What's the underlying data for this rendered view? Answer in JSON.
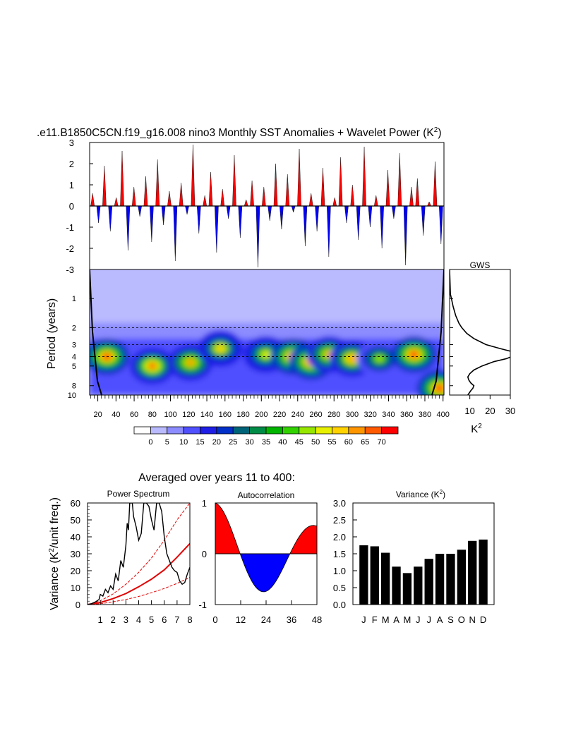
{
  "title": {
    "main": ".e11.B1850C5CN.f19_g16.008 nino3 Monthly SST Anomalies + Wavelet Power (K",
    "sup": "2",
    "close": ")"
  },
  "subtitle": "Averaged over years 11 to 400:",
  "colors": {
    "positive": "#ff0000",
    "negative": "#0000ff",
    "wavelet_palette": [
      "#ffffff",
      "#babaff",
      "#8c8cff",
      "#5050ff",
      "#1e1ee6",
      "#0030c8",
      "#006478",
      "#008c46",
      "#00b400",
      "#32d200",
      "#96e600",
      "#e6f000",
      "#ffd200",
      "#ff9600",
      "#ff5a00",
      "#ff0000"
    ]
  },
  "chart_data": [
    {
      "id": "timeseries",
      "type": "bar",
      "description_source": "monthly SST anomaly time series",
      "x_range": [
        11,
        400
      ],
      "ylim": [
        -3,
        3
      ],
      "yticks": [
        "3",
        "2",
        "1",
        "0",
        "-1",
        "-2",
        "-3"
      ],
      "ytick_values": [
        3,
        2,
        1,
        0,
        -1,
        -2,
        -3
      ],
      "sampled_values": [
        0.6,
        -0.8,
        1.9,
        -1.2,
        0.4,
        2.6,
        -2.1,
        0.9,
        -0.5,
        1.4,
        -1.7,
        2.2,
        -0.9,
        0.7,
        -2.6,
        1.1,
        -0.4,
        2.9,
        -1.3,
        0.5,
        1.6,
        -2.2,
        0.8,
        -0.6,
        2.4,
        -1.5,
        0.3,
        1.2,
        -2.9,
        0.9,
        -0.7,
        2.0,
        -1.1,
        1.5,
        -0.3,
        2.7,
        -1.9,
        0.6,
        -1.2,
        1.8,
        -2.4,
        0.4,
        2.3,
        -0.8,
        1.0,
        -1.6,
        2.8,
        -1.0,
        0.5,
        -2.0,
        1.7,
        -0.6,
        2.5,
        -2.8,
        0.9,
        1.3,
        -1.4,
        0.2,
        2.1,
        -1.8
      ]
    },
    {
      "id": "wavelet_power",
      "type": "heatmap",
      "ylabel": "Period (years)",
      "xticks": [
        "20",
        "40",
        "60",
        "80",
        "100",
        "120",
        "140",
        "160",
        "180",
        "200",
        "220",
        "240",
        "260",
        "280",
        "300",
        "320",
        "340",
        "360",
        "380",
        "400"
      ],
      "xtick_values": [
        20,
        40,
        60,
        80,
        100,
        120,
        140,
        160,
        180,
        200,
        220,
        240,
        260,
        280,
        300,
        320,
        340,
        360,
        380,
        400
      ],
      "yticks": [
        "1",
        "2",
        "3",
        "4",
        "5",
        "8",
        "10"
      ],
      "ytick_values": [
        1,
        2,
        3,
        4,
        5,
        8,
        10
      ],
      "dashed_periods": [
        2,
        3,
        4
      ],
      "x_range": [
        11,
        401
      ],
      "y_range_years": [
        0.5,
        10
      ],
      "colorbar_labels": [
        "0",
        "5",
        "10",
        "15",
        "20",
        "25",
        "30",
        "35",
        "40",
        "45",
        "50",
        "55",
        "60",
        "65",
        "70"
      ],
      "colorbar_levels": [
        0,
        5,
        10,
        15,
        20,
        25,
        30,
        35,
        40,
        45,
        50,
        55,
        60,
        65,
        70
      ],
      "hotspots": [
        {
          "x": 30,
          "period": 4.0,
          "power": 70
        },
        {
          "x": 80,
          "period": 5.0,
          "power": 65
        },
        {
          "x": 122,
          "period": 4.6,
          "power": 60
        },
        {
          "x": 155,
          "period": 3.3,
          "power": 55
        },
        {
          "x": 205,
          "period": 3.8,
          "power": 50
        },
        {
          "x": 235,
          "period": 4.0,
          "power": 72
        },
        {
          "x": 255,
          "period": 4.5,
          "power": 70
        },
        {
          "x": 275,
          "period": 3.8,
          "power": 60
        },
        {
          "x": 300,
          "period": 4.2,
          "power": 62
        },
        {
          "x": 330,
          "period": 4.2,
          "power": 45
        },
        {
          "x": 368,
          "period": 3.8,
          "power": 70
        },
        {
          "x": 396,
          "period": 8.5,
          "power": 70
        }
      ]
    },
    {
      "id": "gws",
      "type": "line",
      "title": "GWS",
      "xlabel": "K",
      "xlabel_sup": "2",
      "xticks": [
        "10",
        "20",
        "30"
      ],
      "xtick_values": [
        10,
        20,
        30
      ],
      "x_range": [
        0,
        30
      ],
      "period": [
        0.5,
        0.9,
        1.0,
        1.2,
        1.5,
        1.8,
        2.0,
        2.3,
        2.6,
        3.0,
        3.3,
        3.6,
        3.9,
        4.2,
        4.5,
        5.0,
        5.5,
        6.0,
        6.5,
        7.0,
        7.5,
        8.0,
        8.5,
        9.0,
        10.0
      ],
      "power": [
        0.0,
        0.4,
        0.9,
        1.7,
        3.0,
        4.6,
        6.0,
        8.5,
        12.0,
        18.0,
        25.0,
        32.0,
        32.0,
        28.0,
        22.0,
        16.0,
        12.0,
        10.0,
        9.0,
        9.5,
        10.5,
        12.0,
        11.5,
        10.5,
        9.0
      ]
    },
    {
      "id": "power_spectrum",
      "type": "line",
      "title": "Power Spectrum",
      "ylabel": "Variance (K",
      "ylabel_sup": "2",
      "ylabel_end": "/unit freq.)",
      "xticks": [
        "1",
        "2",
        "3",
        "4",
        "5",
        "6",
        "7",
        "8"
      ],
      "xtick_values": [
        1,
        2,
        3,
        4,
        5,
        6,
        7,
        8
      ],
      "yticks": [
        "60",
        "50",
        "40",
        "30",
        "20",
        "10",
        "0"
      ],
      "ytick_values": [
        60,
        50,
        40,
        30,
        20,
        10,
        0
      ],
      "xlim": [
        0,
        8
      ],
      "ylim": [
        0,
        60
      ],
      "x": [
        0.0,
        0.3,
        0.6,
        0.9,
        1.0,
        1.2,
        1.4,
        1.6,
        1.8,
        2.0,
        2.2,
        2.4,
        2.6,
        2.8,
        3.0,
        3.1,
        3.2,
        3.3,
        3.5,
        3.6,
        3.8,
        4.0,
        4.2,
        4.4,
        4.6,
        4.8,
        5.0,
        5.2,
        5.4,
        5.6,
        5.8,
        6.0,
        6.2,
        6.4,
        6.6,
        6.8,
        7.0,
        7.2,
        7.4,
        7.6,
        7.8,
        8.0
      ],
      "y": [
        0.0,
        0.5,
        1.5,
        3.0,
        6.0,
        5.0,
        9.0,
        7.0,
        11.0,
        9.0,
        18.0,
        14.0,
        26.0,
        22.0,
        35.0,
        48.0,
        44.0,
        60.0,
        60.0,
        52.0,
        46.0,
        38.0,
        42.0,
        60.0,
        60.0,
        58.0,
        50.0,
        44.0,
        60.0,
        60.0,
        55.0,
        40.0,
        30.0,
        26.0,
        22.0,
        20.0,
        19.0,
        14.0,
        12.0,
        13.0,
        18.0,
        22.0
      ],
      "red_noise": {
        "x": [
          0,
          1,
          2,
          3,
          4,
          5,
          6,
          7,
          8
        ],
        "y": [
          0,
          1.2,
          3.5,
          6.5,
          10.5,
          15,
          20.5,
          28,
          36
        ]
      },
      "red_noise_upper": {
        "x": [
          0,
          1,
          2,
          3,
          4,
          5,
          6,
          7,
          8
        ],
        "y": [
          0,
          2.2,
          6.3,
          12,
          19,
          27.5,
          38,
          50,
          60
        ]
      },
      "red_noise_lower": {
        "x": [
          0,
          1,
          2,
          3,
          4,
          5,
          6,
          7,
          8
        ],
        "y": [
          0,
          0.5,
          1.6,
          3.0,
          4.8,
          7.0,
          9.5,
          12.5,
          16
        ]
      }
    },
    {
      "id": "autocorrelation",
      "type": "area",
      "title": "Autocorrelation",
      "xticks": [
        "0",
        "12",
        "24",
        "36",
        "48"
      ],
      "xtick_values": [
        0,
        12,
        24,
        36,
        48
      ],
      "yticks": [
        "1",
        "0",
        "-1"
      ],
      "ytick_values": [
        1,
        0,
        -1
      ],
      "xlim": [
        0,
        48
      ],
      "ylim": [
        -1,
        1
      ]
    },
    {
      "id": "variance",
      "type": "bar",
      "title": "Variance (K",
      "title_sup": "2",
      "title_end": ")",
      "categories": [
        "J",
        "F",
        "M",
        "A",
        "M",
        "J",
        "J",
        "A",
        "S",
        "O",
        "N",
        "D"
      ],
      "values": [
        1.75,
        1.72,
        1.53,
        1.12,
        0.93,
        1.12,
        1.35,
        1.5,
        1.5,
        1.62,
        1.88,
        1.92
      ],
      "yticks": [
        "3.0",
        "2.5",
        "2.0",
        "1.5",
        "1.0",
        "0.5",
        "0.0"
      ],
      "ytick_values": [
        3.0,
        2.5,
        2.0,
        1.5,
        1.0,
        0.5,
        0.0
      ],
      "ylim": [
        0,
        3
      ]
    }
  ]
}
